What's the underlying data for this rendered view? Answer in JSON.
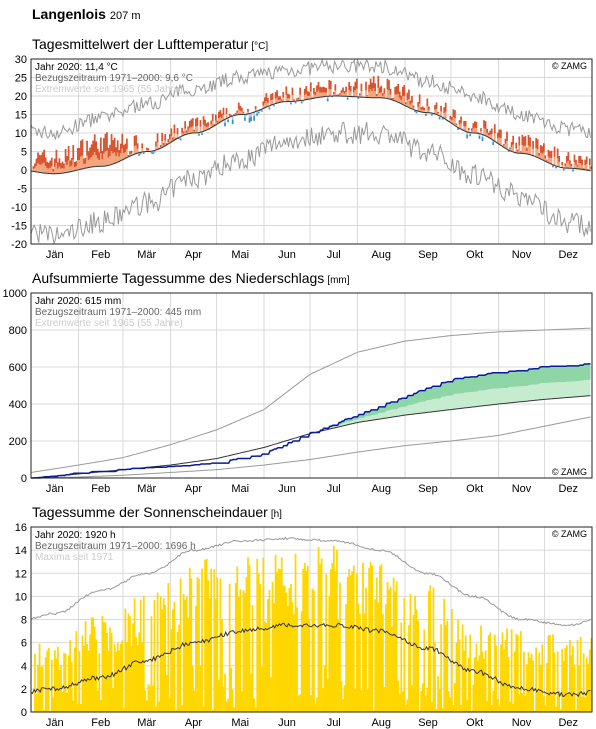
{
  "station": {
    "name": "Langenlois",
    "elevation": "207 m"
  },
  "months": [
    "Jän",
    "Feb",
    "Mär",
    "Apr",
    "Mai",
    "Jun",
    "Jul",
    "Aug",
    "Sep",
    "Okt",
    "Nov",
    "Dez"
  ],
  "colors": {
    "temp_above": "#d7542f",
    "temp_above_light": "#f4a57e",
    "temp_below": "#3b8dc3",
    "temp_below_light": "#9ccbe6",
    "precip_line": "#0a1a9c",
    "precip_above": "#8fd6a6",
    "precip_below": "#c6ecd0",
    "sun_bar": "#ffd700",
    "ref_line": "#333333",
    "extreme_line": "#999999",
    "grid": "#d9d9d9"
  },
  "chart_data": [
    {
      "type": "bar",
      "title": "Tagesmittelwert der Lufttemperatur",
      "unit": "[°C]",
      "legend": [
        "Jahr 2020: 11,4 °C",
        "Bezugszeitraum 1971–2000: 9,6 °C",
        "Extremwerte seit 1965 (55 Jahre)"
      ],
      "source": "© ZAMG",
      "x_categories": [
        "Jän",
        "Feb",
        "Mär",
        "Apr",
        "Mai",
        "Jun",
        "Jul",
        "Aug",
        "Sep",
        "Okt",
        "Nov",
        "Dez"
      ],
      "ylim": [
        -20,
        30
      ],
      "yticks": [
        -20,
        -15,
        -10,
        -5,
        0,
        5,
        10,
        15,
        20,
        25,
        30
      ],
      "series": [
        {
          "name": "Jahr 2020",
          "month_mean_daily_values": [
            3.0,
            7.5,
            6.5,
            11.5,
            15.5,
            20.0,
            21.5,
            22.5,
            17.5,
            11.0,
            7.0,
            2.5
          ]
        },
        {
          "name": "Bezugszeitraum 1971–2000",
          "month_mean_daily_values": [
            -1.0,
            1.0,
            5.0,
            10.0,
            15.0,
            18.5,
            20.0,
            19.5,
            15.5,
            10.0,
            4.5,
            0.5
          ]
        },
        {
          "name": "Extremwerte max",
          "month_mean_daily_values": [
            10,
            14,
            18,
            22,
            25,
            27,
            28,
            28,
            24,
            20,
            15,
            11
          ]
        },
        {
          "name": "Extremwerte min",
          "month_mean_daily_values": [
            -18,
            -14,
            -9,
            -2,
            3,
            8,
            10,
            10,
            5,
            -1,
            -7,
            -14
          ]
        }
      ]
    },
    {
      "type": "line",
      "title": "Aufsummierte Tagessumme des Niederschlags",
      "unit": "[mm]",
      "legend": [
        "Jahr 2020: 615 mm",
        "Bezugszeitraum 1971–2000: 445 mm",
        "Extremwerte seit 1965 (55 Jahre)"
      ],
      "source": "© ZAMG",
      "x_categories": [
        "Jän",
        "Feb",
        "Mär",
        "Apr",
        "Mai",
        "Jun",
        "Jul",
        "Aug",
        "Sep",
        "Okt",
        "Nov",
        "Dez"
      ],
      "x": [
        0,
        31,
        60,
        91,
        121,
        152,
        182,
        213,
        244,
        274,
        305,
        335,
        365
      ],
      "ylim": [
        0,
        1000
      ],
      "yticks": [
        0,
        200,
        400,
        600,
        800,
        1000
      ],
      "series": [
        {
          "name": "Jahr 2020",
          "values": [
            0,
            25,
            45,
            60,
            80,
            130,
            240,
            340,
            440,
            530,
            570,
            600,
            615
          ]
        },
        {
          "name": "Bezugszeitraum 1971–2000",
          "values": [
            0,
            22,
            45,
            70,
            105,
            165,
            240,
            300,
            340,
            370,
            400,
            425,
            445
          ]
        },
        {
          "name": "Extremwerte max",
          "values": [
            30,
            70,
            110,
            180,
            260,
            370,
            560,
            680,
            740,
            770,
            790,
            800,
            810
          ]
        },
        {
          "name": "Extremwerte min",
          "values": [
            0,
            5,
            15,
            30,
            45,
            70,
            100,
            140,
            175,
            200,
            230,
            280,
            330
          ]
        }
      ]
    },
    {
      "type": "bar",
      "title": "Tagessumme der Sonnenscheindauer",
      "unit": "[h]",
      "legend": [
        "Jahr 2020: 1920 h",
        "Bezugszeitraum 1971–2000: 1696 h",
        "Maxima seit 1971"
      ],
      "source": "© ZAMG",
      "x_categories": [
        "Jän",
        "Feb",
        "Mär",
        "Apr",
        "Mai",
        "Jun",
        "Jul",
        "Aug",
        "Sep",
        "Okt",
        "Nov",
        "Dez"
      ],
      "ylim": [
        0,
        16
      ],
      "yticks": [
        0,
        2,
        4,
        6,
        8,
        10,
        12,
        14,
        16
      ],
      "series": [
        {
          "name": "Jahr 2020 (monthly peak daily values)",
          "values": [
            6.5,
            8.5,
            10.5,
            13.5,
            13.5,
            14.0,
            14.5,
            13.5,
            11.0,
            8.0,
            7.5,
            6.5
          ]
        },
        {
          "name": "Bezugszeitraum 1971–2000",
          "values": [
            2.0,
            3.0,
            4.5,
            6.0,
            7.0,
            7.5,
            7.5,
            7.0,
            5.5,
            3.5,
            2.0,
            1.5
          ]
        },
        {
          "name": "Maxima seit 1971",
          "values": [
            8.5,
            10.5,
            12.0,
            14.0,
            14.8,
            15.0,
            14.8,
            14.0,
            12.0,
            10.0,
            8.0,
            7.5
          ]
        }
      ]
    }
  ]
}
